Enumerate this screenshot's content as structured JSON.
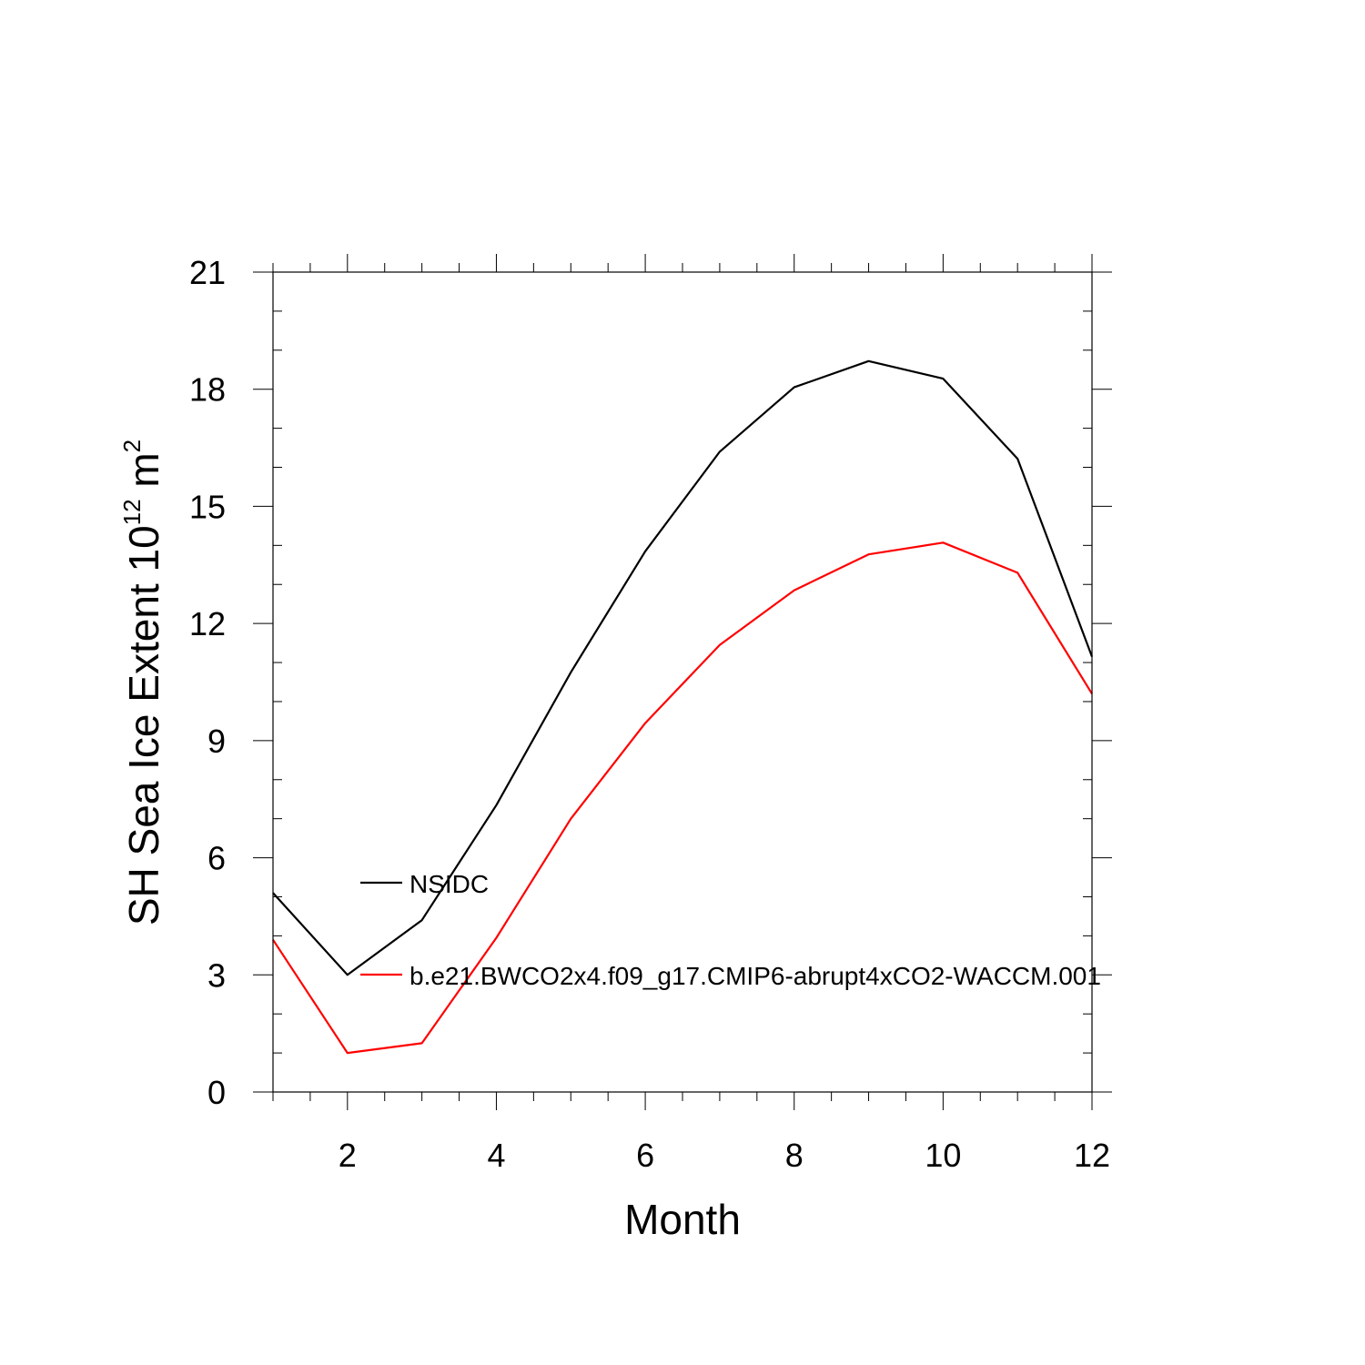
{
  "chart_data": {
    "type": "line",
    "title": "",
    "xlabel": "Month",
    "ylabel": {
      "base": "SH Sea Ice Extent 10",
      "exp1": "12",
      "unit": " m",
      "exp2": "2"
    },
    "xlim": [
      1,
      12
    ],
    "ylim": [
      0,
      21
    ],
    "xticks": [
      2,
      4,
      6,
      8,
      10,
      12
    ],
    "yticks": [
      0,
      3,
      6,
      9,
      12,
      15,
      18,
      21
    ],
    "grid": false,
    "legend_position": "inside-left",
    "x": [
      1,
      2,
      3,
      4,
      5,
      6,
      7,
      8,
      9,
      10,
      11,
      12
    ],
    "series": [
      {
        "name": "NSIDC",
        "color": "#000000",
        "values": [
          5.1,
          3.0,
          4.4,
          7.35,
          10.75,
          13.85,
          16.4,
          18.05,
          18.72,
          18.27,
          16.22,
          11.15
        ]
      },
      {
        "name": "b.e21.BWCO2x4.f09_g17.CMIP6-abrupt4xCO2-WACCM.001",
        "color": "#ff0000",
        "values": [
          3.9,
          1.0,
          1.25,
          3.95,
          7.0,
          9.45,
          11.45,
          12.85,
          13.77,
          14.07,
          13.3,
          10.2
        ]
      }
    ]
  }
}
